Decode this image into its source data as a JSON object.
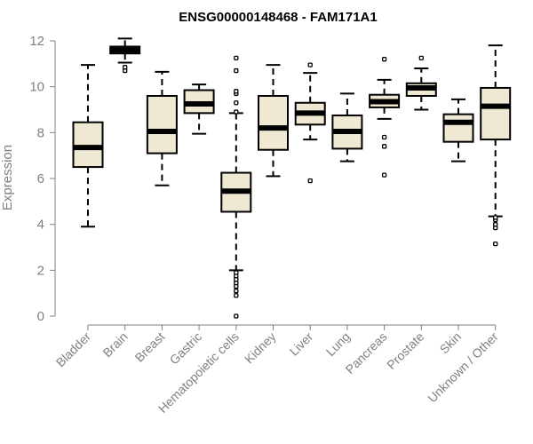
{
  "chart_data": {
    "type": "boxplot",
    "title": "ENSG00000148468 - FAM171A1",
    "xlabel": "",
    "ylabel": "Expression",
    "ylim": [
      0,
      12
    ],
    "yticks": [
      0,
      2,
      4,
      6,
      8,
      10,
      12
    ],
    "box_fill": "#efe8d2",
    "categories": [
      "Bladder",
      "Brain",
      "Breast",
      "Gastric",
      "Hematopoietic cells",
      "Kidney",
      "Liver",
      "Lung",
      "Pancreas",
      "Prostate",
      "Skin",
      "Unknown / Other"
    ],
    "series": [
      {
        "name": "Bladder",
        "whisker_low": 3.9,
        "q1": 6.5,
        "median": 7.35,
        "q3": 8.45,
        "whisker_high": 10.95,
        "outliers": []
      },
      {
        "name": "Brain",
        "whisker_low": 11.05,
        "q1": 11.45,
        "median": 11.6,
        "q3": 11.75,
        "whisker_high": 12.1,
        "outliers": [
          10.7,
          10.85
        ]
      },
      {
        "name": "Breast",
        "whisker_low": 5.7,
        "q1": 7.1,
        "median": 8.05,
        "q3": 9.6,
        "whisker_high": 10.65,
        "outliers": []
      },
      {
        "name": "Gastric",
        "whisker_low": 7.95,
        "q1": 8.85,
        "median": 9.25,
        "q3": 9.85,
        "whisker_high": 10.1,
        "outliers": []
      },
      {
        "name": "Hematopoietic cells",
        "whisker_low": 2.0,
        "q1": 4.55,
        "median": 5.45,
        "q3": 6.25,
        "whisker_high": 8.85,
        "outliers": [
          0.0,
          0.9,
          1.1,
          1.3,
          1.45,
          1.6,
          1.75,
          1.9,
          8.9,
          9.3,
          9.7,
          9.8,
          10.7,
          11.25
        ]
      },
      {
        "name": "Kidney",
        "whisker_low": 6.1,
        "q1": 7.25,
        "median": 8.2,
        "q3": 9.6,
        "whisker_high": 10.95,
        "outliers": []
      },
      {
        "name": "Liver",
        "whisker_low": 7.7,
        "q1": 8.35,
        "median": 8.85,
        "q3": 9.3,
        "whisker_high": 10.6,
        "outliers": [
          5.9,
          10.95
        ]
      },
      {
        "name": "Lung",
        "whisker_low": 6.75,
        "q1": 7.3,
        "median": 8.05,
        "q3": 8.75,
        "whisker_high": 9.7,
        "outliers": []
      },
      {
        "name": "Pancreas",
        "whisker_low": 8.6,
        "q1": 9.1,
        "median": 9.35,
        "q3": 9.65,
        "whisker_high": 10.3,
        "outliers": [
          6.15,
          7.4,
          7.8,
          11.2
        ]
      },
      {
        "name": "Prostate",
        "whisker_low": 9.0,
        "q1": 9.6,
        "median": 9.95,
        "q3": 10.15,
        "whisker_high": 10.8,
        "outliers": [
          11.25
        ]
      },
      {
        "name": "Skin",
        "whisker_low": 6.75,
        "q1": 7.6,
        "median": 8.45,
        "q3": 8.8,
        "whisker_high": 9.45,
        "outliers": []
      },
      {
        "name": "Unknown / Other",
        "whisker_low": 4.35,
        "q1": 7.7,
        "median": 9.15,
        "q3": 9.95,
        "whisker_high": 11.8,
        "outliers": [
          3.15,
          3.85,
          4.0,
          4.2,
          4.3
        ]
      }
    ]
  }
}
